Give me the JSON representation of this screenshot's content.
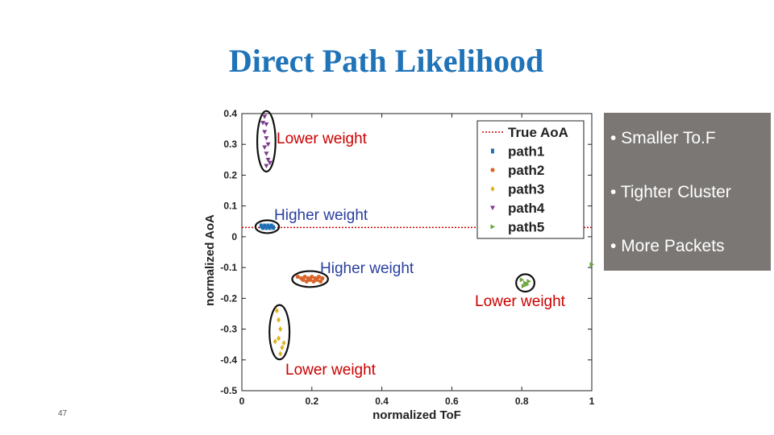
{
  "slide": {
    "title": "Direct Path Likelihood",
    "number": "47"
  },
  "annotations": {
    "path5": "Lower weight",
    "path1": "Higher weight",
    "path2": "Higher weight",
    "path4_right": "Lower weight",
    "path3": "Lower weight"
  },
  "bullets": [
    "Smaller To.F",
    "Tighter Cluster",
    "More Packets"
  ],
  "colors": {
    "title": "#1f73b8",
    "annotation_red": "#cc0000",
    "annotation_blue": "#2a3fa0",
    "bullet_box": "#7a7774"
  },
  "chart_data": {
    "type": "scatter",
    "xlabel": "normalized ToF",
    "ylabel": "normalized AoA",
    "xlim": [
      0,
      1
    ],
    "ylim": [
      -0.5,
      0.4
    ],
    "xticks": [
      0,
      0.2,
      0.4,
      0.6,
      0.8,
      1
    ],
    "yticks": [
      0.4,
      0.3,
      0.2,
      0.1,
      0,
      -0.1,
      -0.2,
      -0.3,
      -0.4,
      -0.5
    ],
    "reference_line": {
      "name": "True AoA",
      "y": 0.03,
      "color": "#cc0000",
      "style": "dotted"
    },
    "legend_position": "top-right",
    "series": [
      {
        "name": "path1",
        "marker": "square",
        "color": "#1f6fb5",
        "points": [
          [
            0.055,
            0.035
          ],
          [
            0.06,
            0.03
          ],
          [
            0.065,
            0.035
          ],
          [
            0.07,
            0.03
          ],
          [
            0.075,
            0.035
          ],
          [
            0.08,
            0.03
          ],
          [
            0.085,
            0.035
          ],
          [
            0.09,
            0.03
          ]
        ]
      },
      {
        "name": "path2",
        "marker": "circle",
        "color": "#d9652b",
        "points": [
          [
            0.16,
            -0.13
          ],
          [
            0.17,
            -0.135
          ],
          [
            0.175,
            -0.14
          ],
          [
            0.18,
            -0.13
          ],
          [
            0.185,
            -0.145
          ],
          [
            0.19,
            -0.135
          ],
          [
            0.195,
            -0.14
          ],
          [
            0.2,
            -0.13
          ],
          [
            0.205,
            -0.145
          ],
          [
            0.21,
            -0.135
          ],
          [
            0.215,
            -0.14
          ],
          [
            0.22,
            -0.13
          ],
          [
            0.225,
            -0.145
          ],
          [
            0.23,
            -0.135
          ]
        ]
      },
      {
        "name": "path3",
        "marker": "diamond",
        "color": "#e0b020",
        "points": [
          [
            0.1,
            -0.24
          ],
          [
            0.105,
            -0.27
          ],
          [
            0.11,
            -0.3
          ],
          [
            0.095,
            -0.34
          ],
          [
            0.105,
            -0.33
          ],
          [
            0.115,
            -0.36
          ],
          [
            0.12,
            -0.345
          ],
          [
            0.11,
            -0.38
          ]
        ]
      },
      {
        "name": "path4",
        "marker": "triangle-down",
        "color": "#7b3c8c",
        "points": [
          [
            0.065,
            0.39
          ],
          [
            0.06,
            0.37
          ],
          [
            0.07,
            0.365
          ],
          [
            0.065,
            0.34
          ],
          [
            0.07,
            0.32
          ],
          [
            0.075,
            0.3
          ],
          [
            0.065,
            0.29
          ],
          [
            0.07,
            0.27
          ],
          [
            0.075,
            0.25
          ],
          [
            0.08,
            0.24
          ],
          [
            0.07,
            0.23
          ]
        ]
      },
      {
        "name": "path5",
        "marker": "triangle-right",
        "color": "#6aa53a",
        "points": [
          [
            0.8,
            -0.14
          ],
          [
            0.81,
            -0.15
          ],
          [
            0.82,
            -0.145
          ],
          [
            0.805,
            -0.16
          ],
          [
            0.815,
            -0.155
          ],
          [
            1.0,
            -0.09
          ]
        ]
      }
    ]
  }
}
